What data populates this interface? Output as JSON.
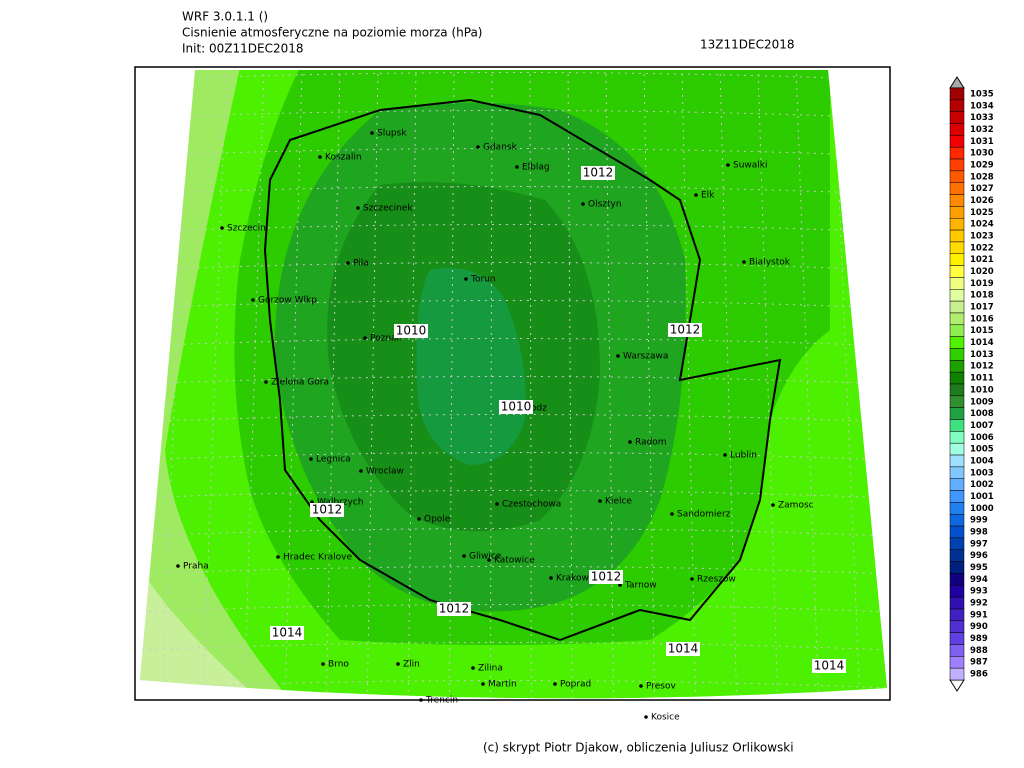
{
  "header": {
    "lines": [
      "WRF 3.0.1.1 ()",
      "Cisnienie atmosferyczne na poziomie morza (hPa)",
      "Init: 00Z11DEC2018"
    ],
    "valid": "13Z11DEC2018"
  },
  "cities": [
    "Slupsk",
    "Koszalin",
    "Gdansk",
    "Elblag",
    "Suwalki",
    "Elk",
    "Olsztyn",
    "Szczecinek",
    "Szczecin",
    "Bialystok",
    "Pila",
    "Torun",
    "Gorzow Wlkp",
    "Poznan",
    "Warszawa",
    "Zielona Gora",
    "Lodz",
    "Radom",
    "Lublin",
    "Legnica",
    "Wroclaw",
    "Walbrzych",
    "Czestochowa",
    "Kielce",
    "Zamosc",
    "Opole",
    "Sandomierz",
    "Praha",
    "Hradec Kralove",
    "Gliwice",
    "Katowice",
    "Krakow",
    "Tarnow",
    "Rzeszow",
    "Brno",
    "Zlin",
    "Zilina",
    "Martin",
    "Poprad",
    "Presov",
    "Trencin",
    "Kosice"
  ],
  "contour_labels": [
    1012,
    1010,
    1012,
    1010,
    1012,
    1012,
    1012,
    1014,
    1014,
    1014
  ],
  "colorbar": {
    "levels": [
      1035,
      1034,
      1033,
      1032,
      1031,
      1030,
      1029,
      1028,
      1027,
      1026,
      1025,
      1024,
      1023,
      1022,
      1021,
      1020,
      1019,
      1018,
      1017,
      1016,
      1015,
      1014,
      1013,
      1012,
      1011,
      1010,
      1009,
      1008,
      1007,
      1006,
      1005,
      1004,
      1003,
      1002,
      1001,
      1000,
      999,
      998,
      997,
      996,
      995,
      994,
      993,
      992,
      991,
      990,
      989,
      988,
      987,
      986
    ],
    "colors": [
      "#a00000",
      "#b40000",
      "#c80000",
      "#dc0000",
      "#f00000",
      "#ff2800",
      "#ff4000",
      "#ff5a00",
      "#ff7000",
      "#ff8a00",
      "#ffa000",
      "#ffb400",
      "#ffc800",
      "#ffdc00",
      "#fff000",
      "#ffff40",
      "#f0ff80",
      "#e0ffa0",
      "#c8f090",
      "#b0ee70",
      "#90ee50",
      "#50f000",
      "#30d000",
      "#20a000",
      "#108000",
      "#207a20",
      "#309030",
      "#20a040",
      "#40e080",
      "#80ffc0",
      "#a0ffe0",
      "#a0e0ff",
      "#80c8ff",
      "#60b0ff",
      "#4098ff",
      "#2080f0",
      "#1068e0",
      "#0050d0",
      "#0040b0",
      "#003090",
      "#002080",
      "#100080",
      "#2000a0",
      "#3010b0",
      "#4020c0",
      "#5030d0",
      "#6040e0",
      "#8060f0",
      "#a080ff",
      "#c0b0ff"
    ]
  },
  "footer": "(c) skrypt Piotr Djakow, obliczenia Juliusz Orlikowski"
}
